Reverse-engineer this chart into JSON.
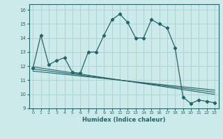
{
  "xlabel": "Humidex (Indice chaleur)",
  "bg_color": "#cceaea",
  "grid_color": "#aad4d4",
  "line_color": "#226666",
  "xlim": [
    -0.5,
    23.5
  ],
  "ylim": [
    9,
    16.4
  ],
  "xticks": [
    0,
    1,
    2,
    3,
    4,
    5,
    6,
    7,
    8,
    9,
    10,
    11,
    12,
    13,
    14,
    15,
    16,
    17,
    18,
    19,
    20,
    21,
    22,
    23
  ],
  "yticks": [
    9,
    10,
    11,
    12,
    13,
    14,
    15,
    16
  ],
  "main_x": [
    0,
    1,
    2,
    3,
    4,
    5,
    6,
    7,
    8,
    9,
    10,
    11,
    12,
    13,
    14,
    15,
    16,
    17,
    18,
    19,
    20,
    21,
    22,
    23
  ],
  "main_y": [
    11.85,
    14.2,
    12.1,
    12.4,
    12.6,
    11.55,
    11.5,
    13.0,
    13.0,
    14.2,
    15.3,
    15.7,
    15.1,
    14.0,
    14.0,
    15.3,
    15.0,
    14.7,
    13.3,
    9.8,
    9.35,
    9.6,
    9.5,
    9.4
  ],
  "trend_lines": [
    {
      "x": [
        0,
        23
      ],
      "y": [
        11.95,
        10.0
      ]
    },
    {
      "x": [
        0,
        23
      ],
      "y": [
        11.8,
        10.15
      ]
    },
    {
      "x": [
        0,
        23
      ],
      "y": [
        11.65,
        10.3
      ]
    }
  ]
}
